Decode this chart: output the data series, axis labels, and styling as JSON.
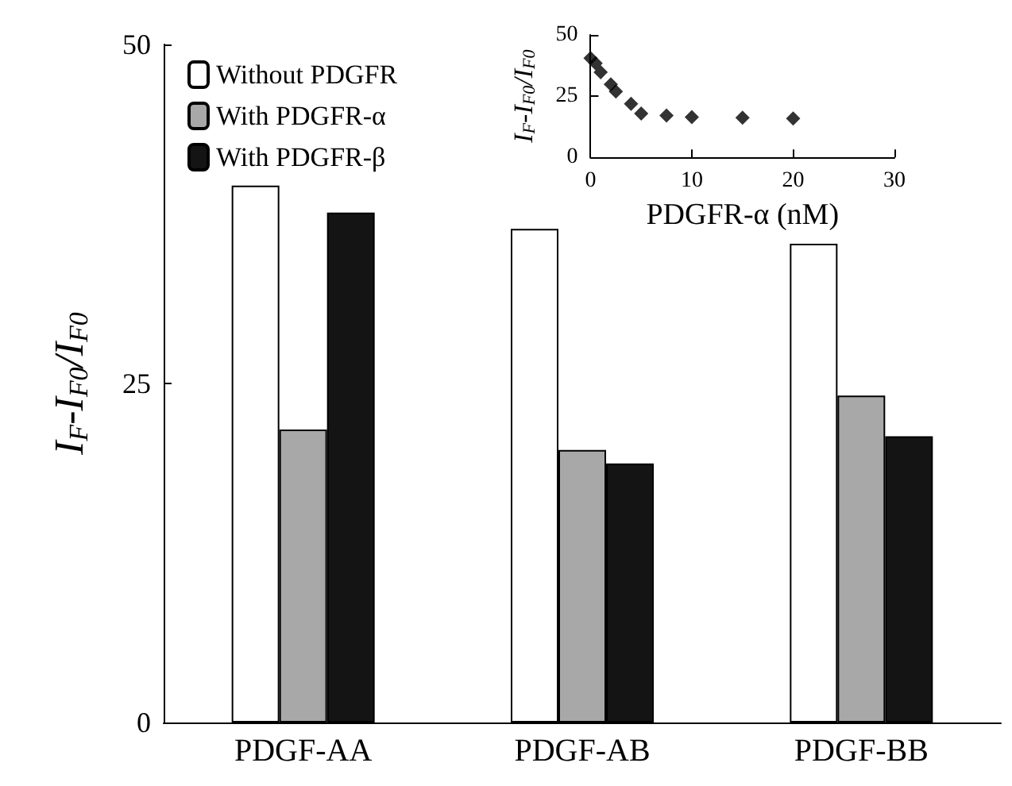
{
  "chart_data": [
    {
      "type": "bar",
      "ylabel": "I$_{F}$-I$_{F0}$/I$_{F0}$",
      "categories": [
        "PDGF-AA",
        "PDGF-AB",
        "PDGF-BB"
      ],
      "series": [
        {
          "name": "Without PDGFR",
          "color": "#ffffff",
          "values": [
            39.6,
            36.4,
            35.3
          ]
        },
        {
          "name": "With PDGFR-α",
          "color": "#a8a8a8",
          "values": [
            21.6,
            20.1,
            24.1
          ]
        },
        {
          "name": "With PDGFR-β",
          "color": "#141414",
          "values": [
            37.6,
            19.1,
            21.1
          ]
        }
      ],
      "ylim": [
        0,
        50
      ],
      "yticks": [
        0,
        25,
        50
      ],
      "grid": false,
      "legend": "top left"
    },
    {
      "type": "scatter",
      "xlabel": "PDGFR-α (nM)",
      "ylabel": "I$_{F}$-I$_{F0}$/I$_{F0}$",
      "x": [
        0,
        0.5,
        1,
        2,
        2.5,
        4,
        5,
        7.5,
        10,
        15,
        20
      ],
      "values": [
        40.5,
        38.4,
        34.8,
        29.8,
        26.9,
        21.9,
        17.9,
        17.1,
        16.4,
        16.2,
        15.9
      ],
      "color": "#000000",
      "marker": "diamond",
      "xlim": [
        0,
        30
      ],
      "xticks": [
        0,
        10,
        20,
        30
      ],
      "ylim": [
        0,
        50
      ],
      "yticks": [
        0,
        25,
        50
      ],
      "grid": false
    }
  ]
}
